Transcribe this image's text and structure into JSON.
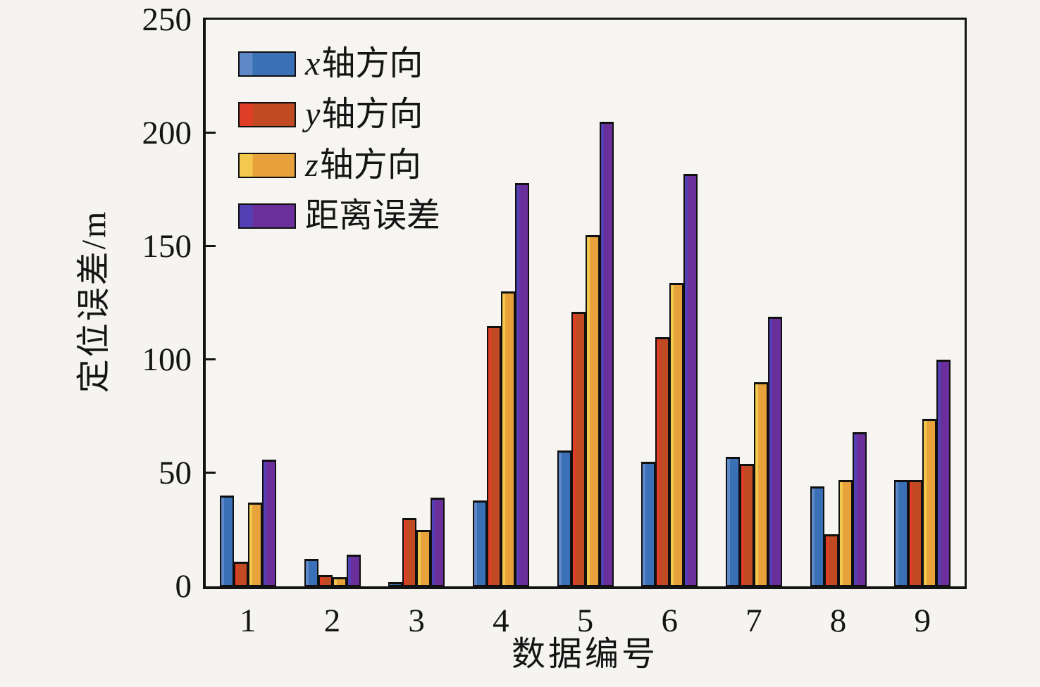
{
  "figure": {
    "background": "#f5f4f1",
    "axis_color": "#141414"
  },
  "chart_data": {
    "type": "bar",
    "title": "",
    "xlabel": "数据编号",
    "ylabel": "定位误差/m",
    "ylim": [
      0,
      250
    ],
    "y_ticks": [
      0,
      50,
      100,
      150,
      200,
      250
    ],
    "grid": false,
    "legend_position": "upper-left",
    "categories": [
      "1",
      "2",
      "3",
      "4",
      "5",
      "6",
      "7",
      "8",
      "9"
    ],
    "series": [
      {
        "key": "x",
        "name": "x轴方向",
        "color": "#3a70b5",
        "highlight": "#5e88c8",
        "values": [
          40,
          12,
          2,
          38,
          60,
          55,
          57,
          44,
          47
        ]
      },
      {
        "key": "y",
        "name": "y轴方向",
        "color": "#c14a23",
        "highlight": "#e03d27",
        "values": [
          11,
          5,
          30,
          115,
          121,
          110,
          54,
          23,
          47
        ]
      },
      {
        "key": "z",
        "name": "z轴方向",
        "color": "#e8a23b",
        "highlight": "#f2c94d",
        "values": [
          37,
          4,
          25,
          130,
          155,
          134,
          90,
          47,
          74
        ]
      },
      {
        "key": "d",
        "name": "距离误差",
        "color": "#6b2f9c",
        "highlight": "#5340b5",
        "values": [
          56,
          14,
          39,
          178,
          205,
          182,
          119,
          68,
          100
        ]
      }
    ]
  },
  "legend": {
    "items": [
      {
        "var": "x",
        "text": "轴方向"
      },
      {
        "var": "y",
        "text": "轴方向"
      },
      {
        "var": "z",
        "text": "轴方向"
      },
      {
        "var": "",
        "text": "距离误差"
      }
    ]
  }
}
